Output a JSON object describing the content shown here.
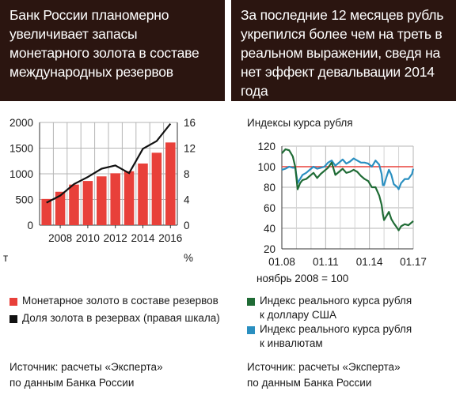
{
  "left": {
    "title": "Банк России планомерно увеличивает запасы монетарного золота в составе международных резервов",
    "unit_left": "т",
    "unit_right": "%",
    "legend": [
      {
        "label": "Монетарное золото в составе резервов",
        "color": "#e8403a"
      },
      {
        "label": "Доля золота в резервах (правая шкала)",
        "color": "#111111"
      }
    ],
    "source_line1": "Источник: расчеты «Эксперта»",
    "source_line2": "по данным Банка России"
  },
  "right": {
    "title": "За последние 12 месяцев рубль укрепился более чем на треть в реальном выражении, сведя на нет эффект девальвации 2014 года",
    "chart_label": "Индексы курса рубля",
    "base_note": "ноябрь 2008 = 100",
    "legend": [
      {
        "label_line1": "Индекс реального курса рубля",
        "label_line2": "к доллару США",
        "color": "#1f6b35"
      },
      {
        "label_line1": "Индекс реального курса рубля",
        "label_line2": "к инвалютам",
        "color": "#2a8fc0"
      }
    ],
    "source_line1": "Источник: расчеты «Эксперта»",
    "source_line2": "по данным Банка России"
  },
  "chart_data": [
    {
      "type": "bar",
      "categories": [
        "2007",
        "2008",
        "2009",
        "2010",
        "2011",
        "2012",
        "2013",
        "2014",
        "2015",
        "2016"
      ],
      "x_tick_labels": [
        "2008",
        "2010",
        "2012",
        "2014",
        "2016"
      ],
      "series": [
        {
          "name": "Монетарное золото в составе резервов",
          "type": "bar",
          "axis": "left",
          "color": "#e8403a",
          "values": [
            510,
            650,
            790,
            860,
            950,
            1010,
            1050,
            1200,
            1410,
            1610
          ]
        },
        {
          "name": "Доля золота в резервах (правая шкала)",
          "type": "line",
          "axis": "right",
          "color": "#111111",
          "values": [
            3.5,
            4.6,
            6.4,
            7.5,
            8.8,
            9.3,
            8.1,
            11.9,
            13.1,
            15.8
          ]
        }
      ],
      "ylim_left": [
        0,
        2000
      ],
      "yticks_left": [
        "0",
        "500",
        "1000",
        "1500",
        "2000"
      ],
      "ylim_right": [
        0,
        16
      ],
      "yticks_right": [
        "0",
        "4",
        "8",
        "12",
        "16"
      ],
      "ylabel_left": "т",
      "ylabel_right": "%",
      "grid": true,
      "legend": "bottom"
    },
    {
      "type": "line",
      "x_tick_labels": [
        "01.08",
        "01.11",
        "01.14",
        "01.17"
      ],
      "xlim": [
        "2008-01",
        "2017-01"
      ],
      "ylim": [
        20,
        120
      ],
      "yticks": [
        "20",
        "40",
        "60",
        "80",
        "100",
        "120"
      ],
      "reference_line": {
        "y": 100,
        "color": "#e8403a"
      },
      "title": "Индексы курса рубля",
      "note": "ноябрь 2008 = 100",
      "grid": true,
      "legend": "bottom",
      "series": [
        {
          "name": "Индекс реального курса рубля к доллару США",
          "color": "#1f6b35",
          "x": [
            "2008-01",
            "2008-04",
            "2008-07",
            "2008-10",
            "2008-12",
            "2009-02",
            "2009-04",
            "2009-06",
            "2009-09",
            "2009-12",
            "2010-03",
            "2010-06",
            "2010-09",
            "2010-12",
            "2011-03",
            "2011-06",
            "2011-09",
            "2011-12",
            "2012-03",
            "2012-06",
            "2012-09",
            "2012-12",
            "2013-03",
            "2013-06",
            "2013-09",
            "2013-12",
            "2014-03",
            "2014-06",
            "2014-09",
            "2014-11",
            "2014-12",
            "2015-01",
            "2015-03",
            "2015-05",
            "2015-07",
            "2015-09",
            "2015-12",
            "2016-01",
            "2016-03",
            "2016-06",
            "2016-09",
            "2016-12",
            "2017-01"
          ],
          "values": [
            113,
            117,
            116,
            110,
            100,
            78,
            84,
            87,
            88,
            91,
            94,
            89,
            93,
            96,
            99,
            104,
            92,
            95,
            98,
            94,
            95,
            97,
            95,
            91,
            88,
            86,
            80,
            80,
            72,
            63,
            54,
            48,
            52,
            56,
            49,
            45,
            40,
            38,
            42,
            44,
            43,
            46,
            47
          ]
        },
        {
          "name": "Индекс реального курса рубля к инвалютам",
          "color": "#2a8fc0",
          "x": [
            "2008-01",
            "2008-04",
            "2008-07",
            "2008-10",
            "2008-12",
            "2009-02",
            "2009-04",
            "2009-06",
            "2009-09",
            "2009-12",
            "2010-03",
            "2010-06",
            "2010-09",
            "2010-12",
            "2011-03",
            "2011-06",
            "2011-09",
            "2011-12",
            "2012-03",
            "2012-06",
            "2012-09",
            "2012-12",
            "2013-03",
            "2013-06",
            "2013-09",
            "2013-12",
            "2014-03",
            "2014-06",
            "2014-09",
            "2014-11",
            "2014-12",
            "2015-01",
            "2015-03",
            "2015-05",
            "2015-07",
            "2015-09",
            "2015-12",
            "2016-01",
            "2016-03",
            "2016-06",
            "2016-09",
            "2016-12",
            "2017-01"
          ],
          "values": [
            97,
            98,
            100,
            99,
            99,
            84,
            88,
            92,
            94,
            97,
            100,
            98,
            99,
            100,
            104,
            106,
            101,
            104,
            107,
            103,
            105,
            108,
            106,
            104,
            104,
            103,
            100,
            106,
            102,
            93,
            82,
            82,
            90,
            97,
            92,
            83,
            80,
            78,
            84,
            88,
            88,
            93,
            98
          ]
        }
      ]
    }
  ]
}
